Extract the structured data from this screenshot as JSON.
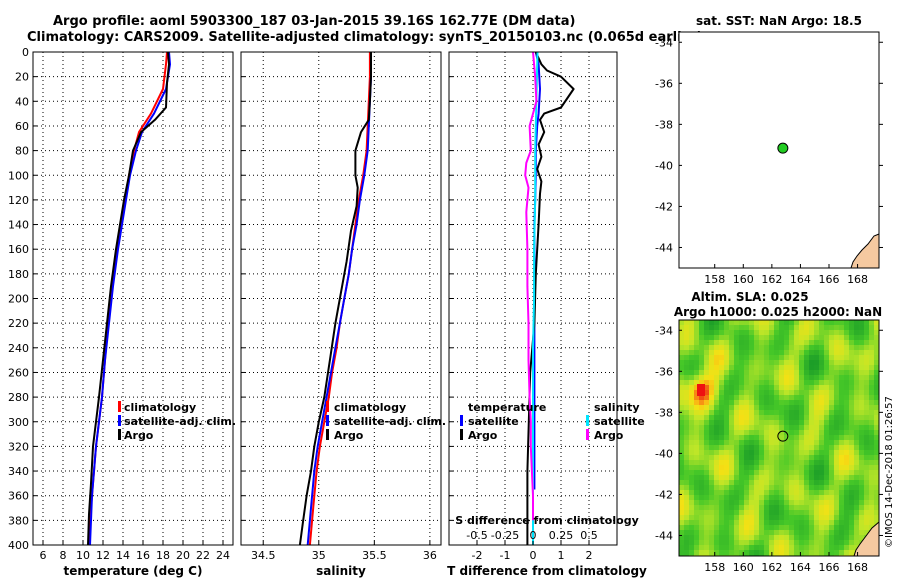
{
  "title": {
    "line1": "Argo profile: aoml 5903300_187 03-Jan-2015 39.16S 162.77E (DM data)",
    "line2": "Climatology: CARS2009. Satellite-adjusted climatology: synTS_20150103.nc (0.065d earlier)"
  },
  "colors": {
    "climatology": "#ff0000",
    "satellite_adj": "#0000ff",
    "argo": "#000000",
    "satellite_s": "#00e5ff",
    "salinity_argo": "#ff00ff",
    "land": "#f5c9a0",
    "argo_marker": "#22cc22"
  },
  "chart_data": [
    {
      "id": "temperature",
      "type": "line",
      "xlabel": "temperature (deg C)",
      "ylabel": "pressure",
      "xlim": [
        5,
        25
      ],
      "ylim": [
        400,
        0
      ],
      "xticks": [
        6,
        8,
        10,
        12,
        14,
        16,
        18,
        20,
        22,
        24
      ],
      "yticks": [
        0,
        20,
        40,
        60,
        80,
        100,
        120,
        140,
        160,
        180,
        200,
        220,
        240,
        260,
        280,
        300,
        320,
        340,
        360,
        380,
        400
      ],
      "grid": true,
      "legend": [
        "climatology",
        "satellite-adj. clim.",
        "Argo"
      ],
      "series": [
        {
          "name": "climatology",
          "color": "#ff0000",
          "x": [
            18.4,
            18.3,
            18.0,
            16.8,
            15.6,
            15.1,
            14.6,
            14.2,
            13.8,
            13.4,
            12.9,
            12.5,
            12.2,
            11.9,
            11.6,
            11.3,
            11.1,
            10.9,
            10.7,
            10.6
          ],
          "y": [
            0,
            10,
            30,
            50,
            65,
            80,
            100,
            120,
            140,
            160,
            190,
            220,
            250,
            280,
            300,
            320,
            340,
            360,
            380,
            400
          ]
        },
        {
          "name": "satellite-adj. clim.",
          "color": "#0000ff",
          "x": [
            18.6,
            18.7,
            18.3,
            17.1,
            15.9,
            15.3,
            14.7,
            14.3,
            13.9,
            13.5,
            13.0,
            12.6,
            12.2,
            11.9,
            11.6,
            11.3,
            11.1,
            10.9,
            10.8,
            10.7
          ],
          "y": [
            0,
            10,
            30,
            50,
            65,
            80,
            100,
            120,
            140,
            160,
            190,
            220,
            250,
            280,
            300,
            320,
            340,
            360,
            380,
            400
          ]
        },
        {
          "name": "Argo",
          "color": "#000000",
          "x": [
            18.5,
            18.6,
            18.4,
            18.3,
            17.2,
            15.8,
            15.0,
            14.6,
            14.1,
            13.7,
            13.3,
            12.8,
            12.4,
            12.0,
            11.6,
            11.3,
            11.0,
            10.8,
            10.6,
            10.5
          ],
          "y": [
            0,
            10,
            25,
            45,
            55,
            65,
            80,
            100,
            120,
            140,
            160,
            190,
            220,
            250,
            280,
            300,
            320,
            350,
            375,
            400
          ]
        }
      ]
    },
    {
      "id": "salinity",
      "type": "line",
      "xlabel": "salinity",
      "xlim": [
        34.3,
        36.1
      ],
      "ylim": [
        400,
        0
      ],
      "xticks": [
        34.5,
        35,
        35.5,
        36
      ],
      "grid": true,
      "legend": [
        "climatology",
        "satellite-adj. clim.",
        "Argo"
      ],
      "series": [
        {
          "name": "climatology",
          "color": "#ff0000",
          "x": [
            35.46,
            35.46,
            35.45,
            35.44,
            35.43,
            35.4,
            35.36,
            35.33,
            35.3,
            35.27,
            35.23,
            35.19,
            35.16,
            35.12,
            35.09,
            35.05,
            35.01,
            34.98,
            34.95,
            34.92
          ],
          "y": [
            0,
            20,
            40,
            60,
            80,
            100,
            120,
            140,
            160,
            180,
            200,
            220,
            240,
            260,
            280,
            300,
            320,
            340,
            370,
            400
          ]
        },
        {
          "name": "satellite-adj. clim.",
          "color": "#0000ff",
          "x": [
            35.47,
            35.47,
            35.46,
            35.45,
            35.44,
            35.41,
            35.37,
            35.34,
            35.3,
            35.27,
            35.23,
            35.19,
            35.15,
            35.11,
            35.07,
            35.03,
            34.99,
            34.96,
            34.93,
            34.9
          ],
          "y": [
            0,
            20,
            40,
            60,
            80,
            100,
            120,
            140,
            160,
            180,
            200,
            220,
            240,
            260,
            280,
            300,
            320,
            340,
            370,
            400
          ]
        },
        {
          "name": "Argo",
          "color": "#000000",
          "x": [
            35.47,
            35.47,
            35.46,
            35.45,
            35.38,
            35.33,
            35.33,
            35.35,
            35.34,
            35.29,
            35.25,
            35.2,
            35.15,
            35.1,
            35.05,
            35.0,
            34.96,
            34.93,
            34.89,
            34.86,
            34.83
          ],
          "y": [
            0,
            20,
            40,
            55,
            65,
            80,
            100,
            110,
            125,
            145,
            170,
            195,
            220,
            250,
            280,
            300,
            320,
            340,
            360,
            380,
            400
          ]
        }
      ]
    },
    {
      "id": "difference",
      "type": "line",
      "xlabel": "T difference from climatology",
      "xlabel2": "S difference from climatology",
      "xlim": [
        -3,
        3
      ],
      "xlim_s": [
        -0.75,
        0.75
      ],
      "ylim": [
        400,
        0
      ],
      "xticks": [
        -2,
        -1,
        0,
        1,
        2
      ],
      "xticks_s": [
        -0.5,
        -0.25,
        0,
        0.25,
        0.5
      ],
      "grid": true,
      "legend_temperature": [
        "temperature",
        "satellite",
        "Argo"
      ],
      "legend_salinity": [
        "salinity",
        "satellite",
        "Argo"
      ],
      "series": [
        {
          "name": "T satellite",
          "axis": "T",
          "color": "#0000ff",
          "x": [
            0.1,
            0.2,
            0.25,
            0.2,
            0.15,
            0.1,
            0.1,
            0.08,
            0.05,
            0.05,
            0.05,
            0.05,
            0.05,
            0.05,
            0.05,
            0.05,
            0.05,
            0.05,
            0.05,
            0.05
          ],
          "y": [
            0,
            10,
            30,
            50,
            60,
            80,
            100,
            120,
            140,
            160,
            180,
            200,
            220,
            240,
            260,
            280,
            300,
            320,
            340,
            355
          ]
        },
        {
          "name": "T Argo",
          "axis": "T",
          "color": "#000000",
          "x": [
            0.1,
            0.2,
            0.3,
            0.5,
            1.0,
            1.45,
            1.0,
            0.4,
            0.25,
            0.4,
            0.2,
            0.3,
            0.15,
            0.3,
            0.25,
            0.2,
            0.1,
            0.05,
            -0.1,
            -0.15,
            -0.2,
            -0.2,
            -0.2
          ],
          "y": [
            0,
            5,
            10,
            15,
            20,
            30,
            45,
            50,
            55,
            65,
            75,
            85,
            95,
            105,
            115,
            140,
            180,
            220,
            260,
            300,
            340,
            370,
            400
          ]
        },
        {
          "name": "S satellite",
          "axis": "S",
          "color": "#00e5ff",
          "x": [
            0.04,
            0.03,
            0.02,
            0.02,
            0.01,
            0.01,
            0.0,
            0.0,
            0.0,
            0.0,
            0.0,
            0.0,
            0.0,
            0.0,
            0.0
          ],
          "y": [
            0,
            40,
            80,
            120,
            160,
            200,
            240,
            260,
            280,
            300,
            320,
            340,
            360,
            380,
            400
          ]
        },
        {
          "name": "S Argo",
          "axis": "S",
          "color": "#ff00ff",
          "x": [
            0.0,
            0.02,
            0.03,
            -0.03,
            -0.02,
            -0.06,
            -0.07,
            -0.04,
            -0.06,
            -0.05,
            -0.05,
            -0.04,
            -0.04,
            -0.03,
            -0.02,
            -0.02,
            -0.01,
            0.0,
            0.0
          ],
          "y": [
            0,
            20,
            40,
            60,
            80,
            90,
            100,
            110,
            130,
            160,
            190,
            220,
            250,
            280,
            300,
            320,
            340,
            360,
            380
          ]
        }
      ]
    },
    {
      "id": "map_sst",
      "type": "scatter",
      "title": "sat. SST: NaN Argo: 18.5",
      "xlim": [
        155.5,
        169.5
      ],
      "ylim": [
        -45,
        -33.5
      ],
      "xticks": [
        158,
        160,
        162,
        164,
        166,
        168
      ],
      "yticks": [
        -34,
        -36,
        -38,
        -40,
        -42,
        -44
      ],
      "point": {
        "lon": 162.77,
        "lat": -39.16
      }
    },
    {
      "id": "map_sla",
      "type": "heatmap",
      "title1": "Altim. SLA: 0.025",
      "title2": "Argo h1000: 0.025 h2000: NaN",
      "xlim": [
        155.5,
        169.5
      ],
      "ylim": [
        -45,
        -33.5
      ],
      "xticks": [
        158,
        160,
        162,
        164,
        166,
        168
      ],
      "yticks": [
        -34,
        -36,
        -38,
        -40,
        -42,
        -44
      ],
      "point": {
        "lon": 162.77,
        "lat": -39.16
      }
    }
  ],
  "credit": "©IMOS 14-Dec-2018 01:26:57"
}
